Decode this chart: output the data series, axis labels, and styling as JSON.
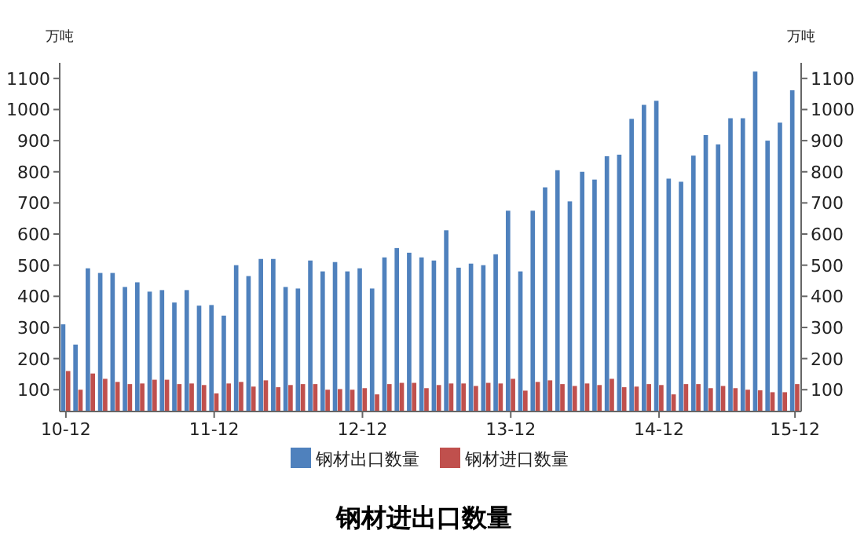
{
  "chart_data": {
    "type": "bar",
    "title": "钢材进出口数量",
    "ylabel": "万吨",
    "y2label": "万吨",
    "categories": [
      "10-12",
      null,
      null,
      null,
      null,
      null,
      null,
      null,
      null,
      null,
      null,
      null,
      "11-12",
      null,
      null,
      null,
      null,
      null,
      null,
      null,
      null,
      null,
      null,
      null,
      "12-12",
      null,
      null,
      null,
      null,
      null,
      null,
      null,
      null,
      null,
      null,
      null,
      "13-12",
      null,
      null,
      null,
      null,
      null,
      null,
      null,
      null,
      null,
      null,
      null,
      "14-12",
      null,
      null,
      null,
      null,
      null,
      null,
      null,
      null,
      null,
      null,
      "15-12"
    ],
    "series": [
      {
        "name": "钢材出口数量",
        "color": "#4f81bd",
        "values": [
          310,
          245,
          490,
          475,
          475,
          430,
          445,
          415,
          420,
          380,
          420,
          370,
          372,
          338,
          500,
          465,
          520,
          520,
          430,
          425,
          515,
          480,
          510,
          480,
          490,
          425,
          525,
          555,
          540,
          525,
          515,
          612,
          492,
          505,
          500,
          535,
          675,
          480,
          675,
          750,
          805,
          705,
          800,
          775,
          850,
          855,
          970,
          1015,
          1028,
          778,
          768,
          852,
          918,
          888,
          972,
          972,
          1122,
          900,
          958,
          1062
        ]
      },
      {
        "name": "钢材进口数量",
        "color": "#c0504d",
        "values": [
          160,
          100,
          152,
          135,
          125,
          118,
          120,
          132,
          132,
          118,
          120,
          115,
          88,
          120,
          125,
          110,
          130,
          108,
          115,
          118,
          118,
          100,
          102,
          100,
          105,
          85,
          118,
          122,
          122,
          105,
          115,
          120,
          120,
          112,
          122,
          120,
          135,
          97,
          125,
          130,
          118,
          112,
          120,
          115,
          135,
          108,
          110,
          118,
          115,
          85,
          118,
          118,
          105,
          112,
          105,
          100,
          98,
          92,
          92,
          118
        ]
      }
    ],
    "ylim": [
      30,
      1150
    ],
    "yticks": [
      100,
      200,
      300,
      400,
      500,
      600,
      700,
      800,
      900,
      1000,
      1100
    ],
    "y2lim": [
      30,
      1150
    ],
    "y2ticks": [
      100,
      200,
      300,
      400,
      500,
      600,
      700,
      800,
      900,
      1000,
      1100
    ],
    "legend": "bottom",
    "grid": false
  }
}
